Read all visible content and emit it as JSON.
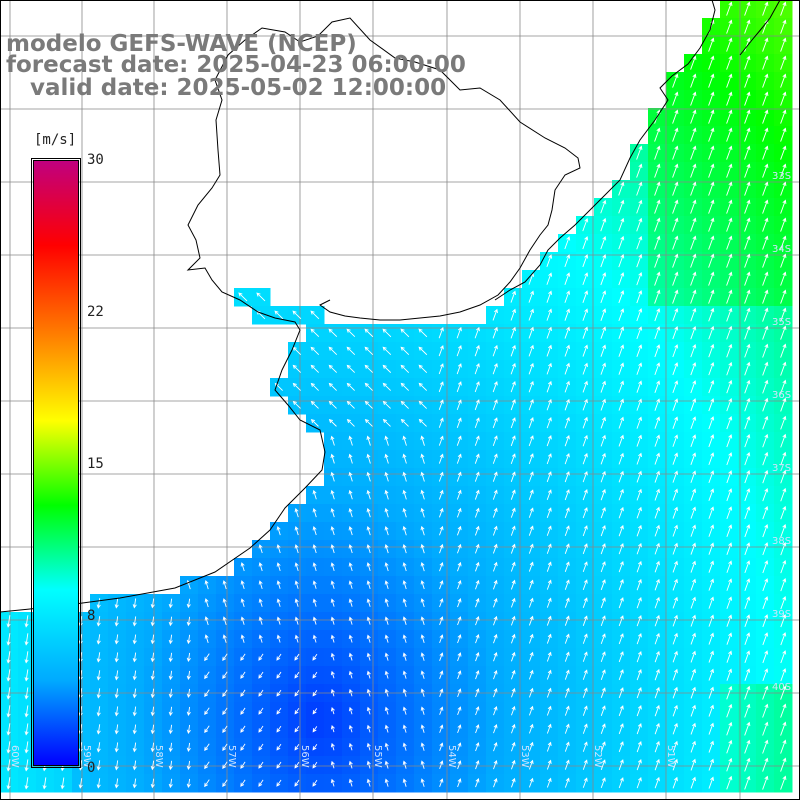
{
  "header": {
    "line1": "modelo GEFS-WAVE (NCEP)",
    "line2": "forecast date: 2025-04-23 06:00:00",
    "line3": "   valid date: 2025-05-02 12:00:00"
  },
  "colorbar": {
    "unit": "[m/s]",
    "ticks": [
      {
        "label": "30",
        "value": 30
      },
      {
        "label": "22",
        "value": 22
      },
      {
        "label": "15",
        "value": 15
      },
      {
        "label": "8",
        "value": 8
      },
      {
        "label": "0",
        "value": 0
      }
    ],
    "colors": [
      "#0000ff",
      "#00aaff",
      "#00ffff",
      "#00ff00",
      "#ffff00",
      "#ff8000",
      "#ff0000",
      "#c0007f"
    ]
  },
  "map": {
    "lat_labels": [
      "33S",
      "34S",
      "35S",
      "36S",
      "37S",
      "38S",
      "39S",
      "40S"
    ],
    "lon_labels": [
      "60W",
      "59W",
      "58W",
      "57W",
      "56W",
      "55W",
      "54W",
      "53W",
      "52W",
      "51W"
    ],
    "wind_field": "10 m wind speed and direction",
    "land_color": "#ffffff",
    "coastline_color": "#000000",
    "grid_color": "#888888"
  }
}
